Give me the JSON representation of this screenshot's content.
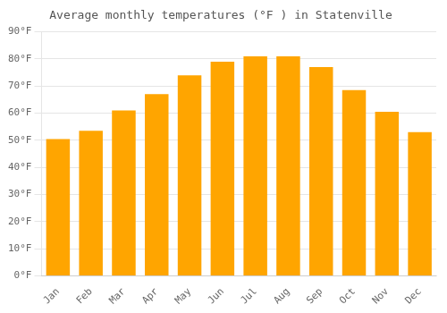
{
  "chart_data": {
    "type": "bar",
    "title": "Average monthly temperatures (°F ) in Statenville",
    "categories": [
      "Jan",
      "Feb",
      "Mar",
      "Apr",
      "May",
      "Jun",
      "Jul",
      "Aug",
      "Sep",
      "Oct",
      "Nov",
      "Dec"
    ],
    "values": [
      50.5,
      53.5,
      61.0,
      67.0,
      74.0,
      79.0,
      81.0,
      81.0,
      77.0,
      68.5,
      60.5,
      53.0
    ],
    "color": "#FFA500",
    "ylim": [
      0,
      90
    ],
    "yticks": [
      {
        "value": 0,
        "label": "0°F"
      },
      {
        "value": 10,
        "label": "10°F"
      },
      {
        "value": 20,
        "label": "20°F"
      },
      {
        "value": 30,
        "label": "30°F"
      },
      {
        "value": 40,
        "label": "40°F"
      },
      {
        "value": 50,
        "label": "50°F"
      },
      {
        "value": 60,
        "label": "60°F"
      },
      {
        "value": 70,
        "label": "70°F"
      },
      {
        "value": 80,
        "label": "80°F"
      },
      {
        "value": 90,
        "label": "90°F"
      }
    ],
    "grid": true
  }
}
